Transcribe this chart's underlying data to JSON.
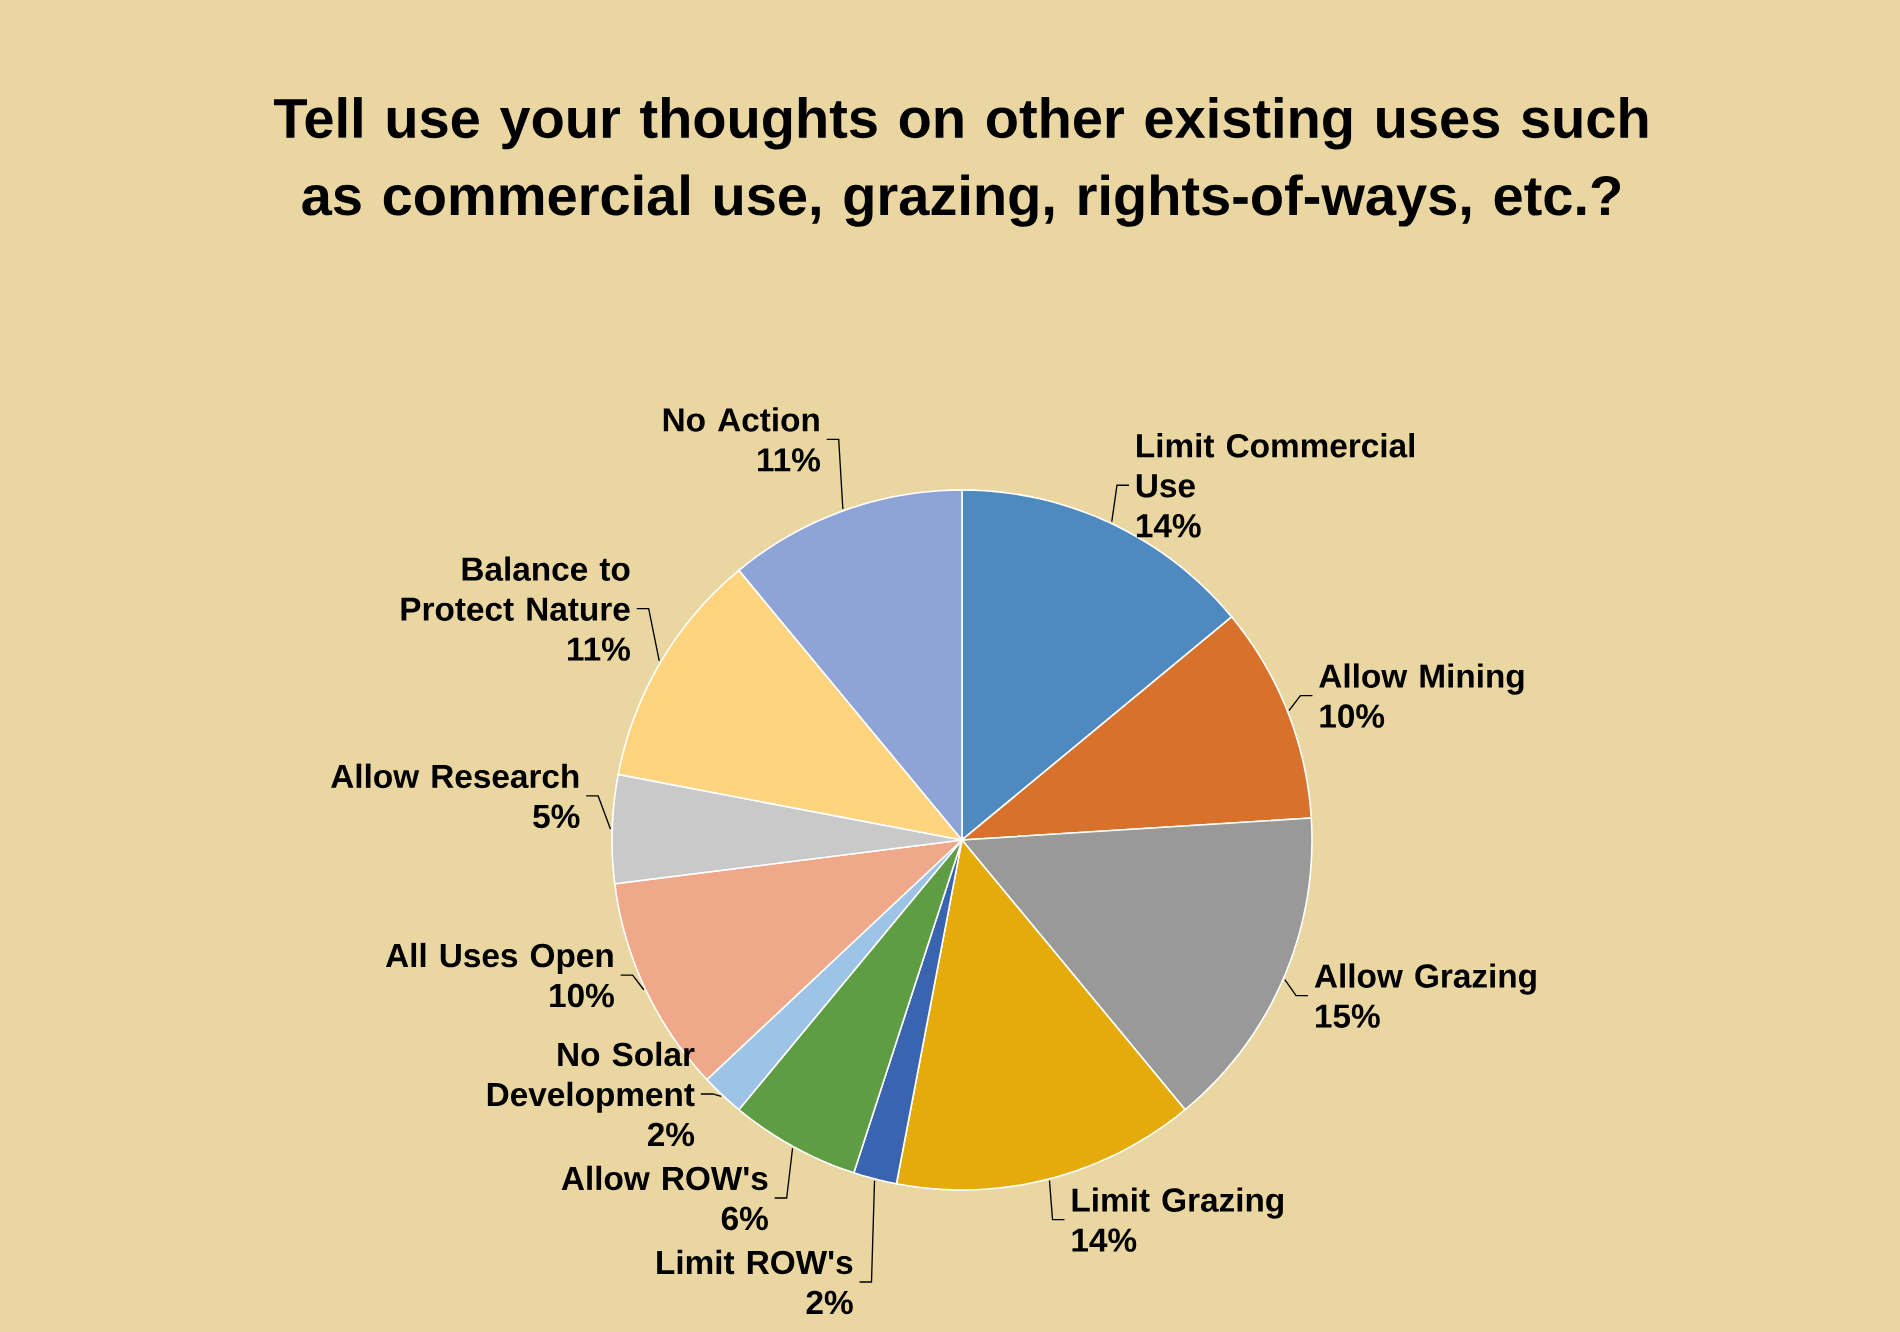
{
  "chart_data": {
    "type": "pie",
    "title": "Tell use your thoughts on other existing uses such as commercial use, grazing, rights-of-ways, etc.?",
    "categories": [
      "Limit Commercial Use",
      "Allow Mining",
      "Allow Grazing",
      "Limit Grazing",
      "Limit ROW's",
      "Allow ROW's",
      "No Solar Development",
      "All Uses Open",
      "Allow Research",
      "Balance to Protect Nature",
      "No Action"
    ],
    "values": [
      14,
      10,
      15,
      14,
      2,
      6,
      2,
      10,
      5,
      11,
      11
    ],
    "value_labels": [
      "14%",
      "10%",
      "15%",
      "14%",
      "2%",
      "6%",
      "2%",
      "10%",
      "5%",
      "11%",
      "11%"
    ],
    "colors": [
      "#4e8ac0",
      "#d8712c",
      "#999999",
      "#e4ab0a",
      "#3a63b0",
      "#5f9d45",
      "#9dc3e6",
      "#f0a88a",
      "#c9c9c9",
      "#ffd47f",
      "#8fa4d6"
    ]
  }
}
